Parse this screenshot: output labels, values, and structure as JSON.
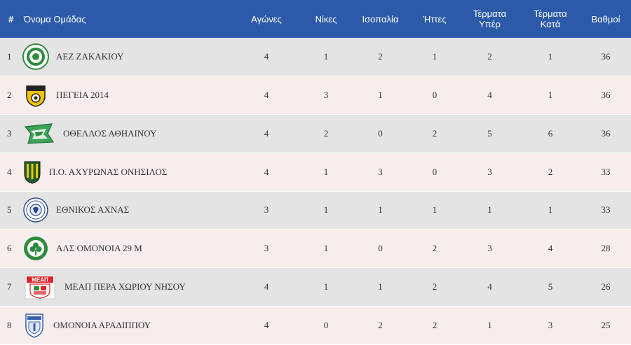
{
  "header": {
    "rank": "#",
    "team": "Όνομα Ομάδας",
    "played": "Αγώνες",
    "wins": "Νίκες",
    "draws": "Ισοπαλία",
    "losses": "Ήττες",
    "goals_for": "Τέρματα Υπέρ",
    "goals_against": "Τέρματα Κατά",
    "points": "Βαθμοί"
  },
  "rows": [
    {
      "rank": "1",
      "team": "ΑΕΖ ΖΑΚΑΚΙΟΥ",
      "logo": "aez-zakakiou-crest-icon",
      "played": "4",
      "wins": "1",
      "draws": "2",
      "losses": "1",
      "gf": "2",
      "ga": "1",
      "points": "36"
    },
    {
      "rank": "2",
      "team": "ΠΕΓΕΙΑ 2014",
      "logo": "pegeia-crest-icon",
      "played": "4",
      "wins": "3",
      "draws": "1",
      "losses": "0",
      "gf": "4",
      "ga": "1",
      "points": "36"
    },
    {
      "rank": "3",
      "team": "ΟΘΕΛΛΟΣ ΑΘΗΑΙΝΟΥ",
      "logo": "othellos-crest-icon",
      "played": "4",
      "wins": "2",
      "draws": "0",
      "losses": "2",
      "gf": "5",
      "ga": "6",
      "points": "36"
    },
    {
      "rank": "4",
      "team": "Π.Ο. ΑΧΥΡΩΝΑΣ ΟΝΗΣΙΛΟΣ",
      "logo": "achyronas-crest-icon",
      "played": "4",
      "wins": "1",
      "draws": "3",
      "losses": "0",
      "gf": "3",
      "ga": "2",
      "points": "33"
    },
    {
      "rank": "5",
      "team": "ΕΘΝΙΚΟΣ ΑΧΝΑΣ",
      "logo": "ethnikos-achnas-crest-icon",
      "played": "3",
      "wins": "1",
      "draws": "1",
      "losses": "1",
      "gf": "1",
      "ga": "1",
      "points": "33"
    },
    {
      "rank": "6",
      "team": "ΑΛΣ ΟΜΟΝΟΙΑ 29 Μ",
      "logo": "omonoia-29m-crest-icon",
      "played": "3",
      "wins": "1",
      "draws": "0",
      "losses": "2",
      "gf": "3",
      "ga": "4",
      "points": "28"
    },
    {
      "rank": "7",
      "team": "ΜΕΑΠ ΠΕΡΑ ΧΩΡΙΟΥ ΝΗΣΟΥ",
      "logo": "meap-crest-icon",
      "logo_text": "ΜΕΑΠ",
      "played": "4",
      "wins": "1",
      "draws": "1",
      "losses": "2",
      "gf": "4",
      "ga": "5",
      "points": "26"
    },
    {
      "rank": "8",
      "team": "ΟΜΟΝΟΙΑ ΑΡΑΔΙΠΠΟΥ",
      "logo": "omonoia-aradippou-crest-icon",
      "played": "4",
      "wins": "0",
      "draws": "2",
      "losses": "2",
      "gf": "1",
      "ga": "3",
      "points": "25"
    }
  ],
  "colors": {
    "header_bg": "#2c5aa8",
    "row_odd": "#e4e4e4",
    "row_even": "#f7eded"
  }
}
